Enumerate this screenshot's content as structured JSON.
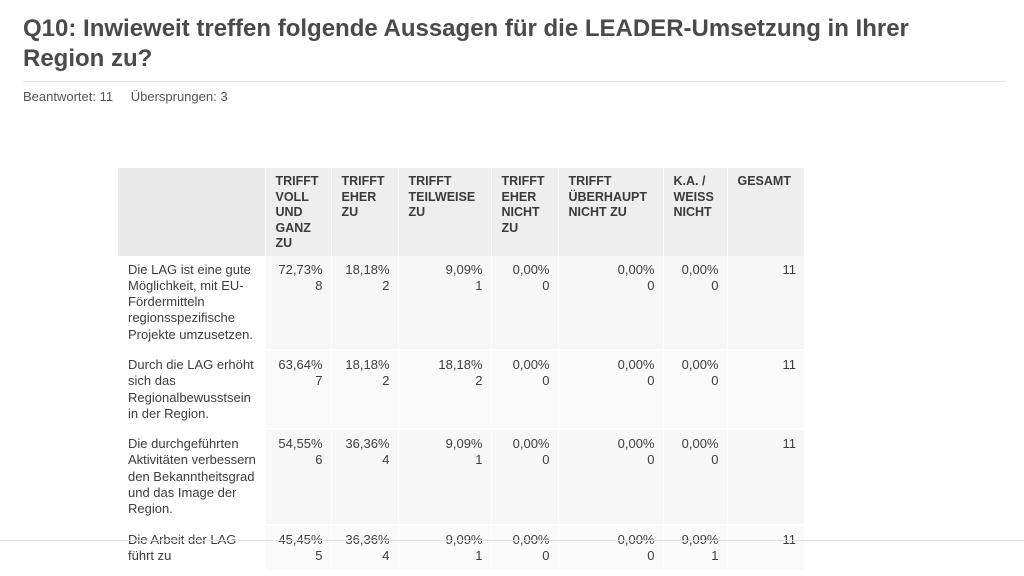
{
  "question": {
    "title": "Q10: Inwieweit treffen folgende Aussagen für die LEADER-Umsetzung in Ihrer Region zu?",
    "answered": "Beantwortet: 11",
    "skipped": "Übersprungen: 3"
  },
  "table": {
    "headers": [
      "",
      "TRIFFT VOLL UND GANZ ZU",
      "TRIFFT EHER ZU",
      "TRIFFT TEILWEISE ZU",
      "TRIFFT EHER NICHT ZU",
      "TRIFFT ÜBERHAUPT NICHT ZU",
      "K.A. / WEISS NICHT",
      "GESAMT"
    ],
    "rows": [
      {
        "label": "Die LAG ist eine gute Möglichkeit, mit EU-Fördermitteln regionsspezifische Projekte umzusetzen.",
        "cells": [
          {
            "pct": "72,73%",
            "cnt": "8"
          },
          {
            "pct": "18,18%",
            "cnt": "2"
          },
          {
            "pct": "9,09%",
            "cnt": "1"
          },
          {
            "pct": "0,00%",
            "cnt": "0"
          },
          {
            "pct": "0,00%",
            "cnt": "0"
          },
          {
            "pct": "0,00%",
            "cnt": "0"
          }
        ],
        "total": "11"
      },
      {
        "label": "Durch die LAG erhöht sich das Regionalbewusstsein in der Region.",
        "cells": [
          {
            "pct": "63,64%",
            "cnt": "7"
          },
          {
            "pct": "18,18%",
            "cnt": "2"
          },
          {
            "pct": "18,18%",
            "cnt": "2"
          },
          {
            "pct": "0,00%",
            "cnt": "0"
          },
          {
            "pct": "0,00%",
            "cnt": "0"
          },
          {
            "pct": "0,00%",
            "cnt": "0"
          }
        ],
        "total": "11"
      },
      {
        "label": "Die durchgeführten Aktivitäten verbessern den Bekanntheitsgrad und das Image der Region.",
        "cells": [
          {
            "pct": "54,55%",
            "cnt": "6"
          },
          {
            "pct": "36,36%",
            "cnt": "4"
          },
          {
            "pct": "9,09%",
            "cnt": "1"
          },
          {
            "pct": "0,00%",
            "cnt": "0"
          },
          {
            "pct": "0,00%",
            "cnt": "0"
          },
          {
            "pct": "0,00%",
            "cnt": "0"
          }
        ],
        "total": "11"
      },
      {
        "label": "Die Arbeit der LAG führt zu",
        "cells": [
          {
            "pct": "45,45%",
            "cnt": "5"
          },
          {
            "pct": "36,36%",
            "cnt": "4"
          },
          {
            "pct": "9,09%",
            "cnt": "1"
          },
          {
            "pct": "0,00%",
            "cnt": "0"
          },
          {
            "pct": "0,00%",
            "cnt": "0"
          },
          {
            "pct": "9,09%",
            "cnt": "1"
          }
        ],
        "total": "11"
      }
    ]
  }
}
